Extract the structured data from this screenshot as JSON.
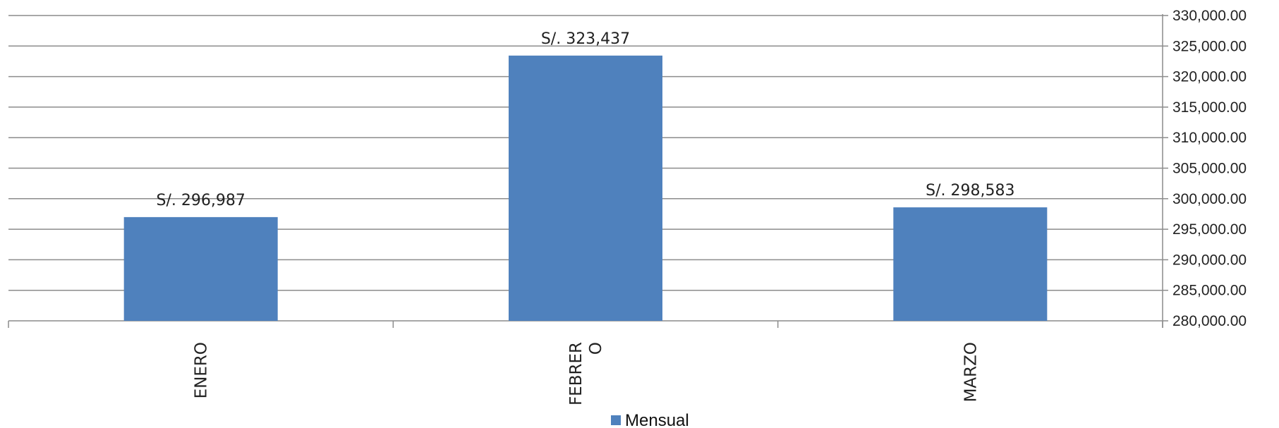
{
  "chart_data": {
    "type": "bar",
    "categories": [
      "ENERO",
      "FEBRERO",
      "MARZO"
    ],
    "category_label_lines": [
      [
        "ENERO"
      ],
      [
        "FEBRER",
        "O"
      ],
      [
        "MARZO"
      ]
    ],
    "series": [
      {
        "name": "Mensual",
        "values": [
          296987,
          323437,
          298583
        ],
        "data_labels": [
          "S/. 296,987",
          "S/. 323,437",
          "S/. 298,583"
        ],
        "color": "#4F81BD"
      }
    ],
    "y_axis": {
      "position": "right",
      "min": 280000,
      "max": 330000,
      "step": 5000,
      "tick_labels": [
        "280,000.00",
        "285,000.00",
        "290,000.00",
        "295,000.00",
        "300,000.00",
        "305,000.00",
        "310,000.00",
        "315,000.00",
        "320,000.00",
        "325,000.00",
        "330,000.00"
      ]
    },
    "grid": true,
    "gridline_color": "#8c8c8c",
    "legend": {
      "position": "bottom",
      "label": "Mensual"
    }
  }
}
